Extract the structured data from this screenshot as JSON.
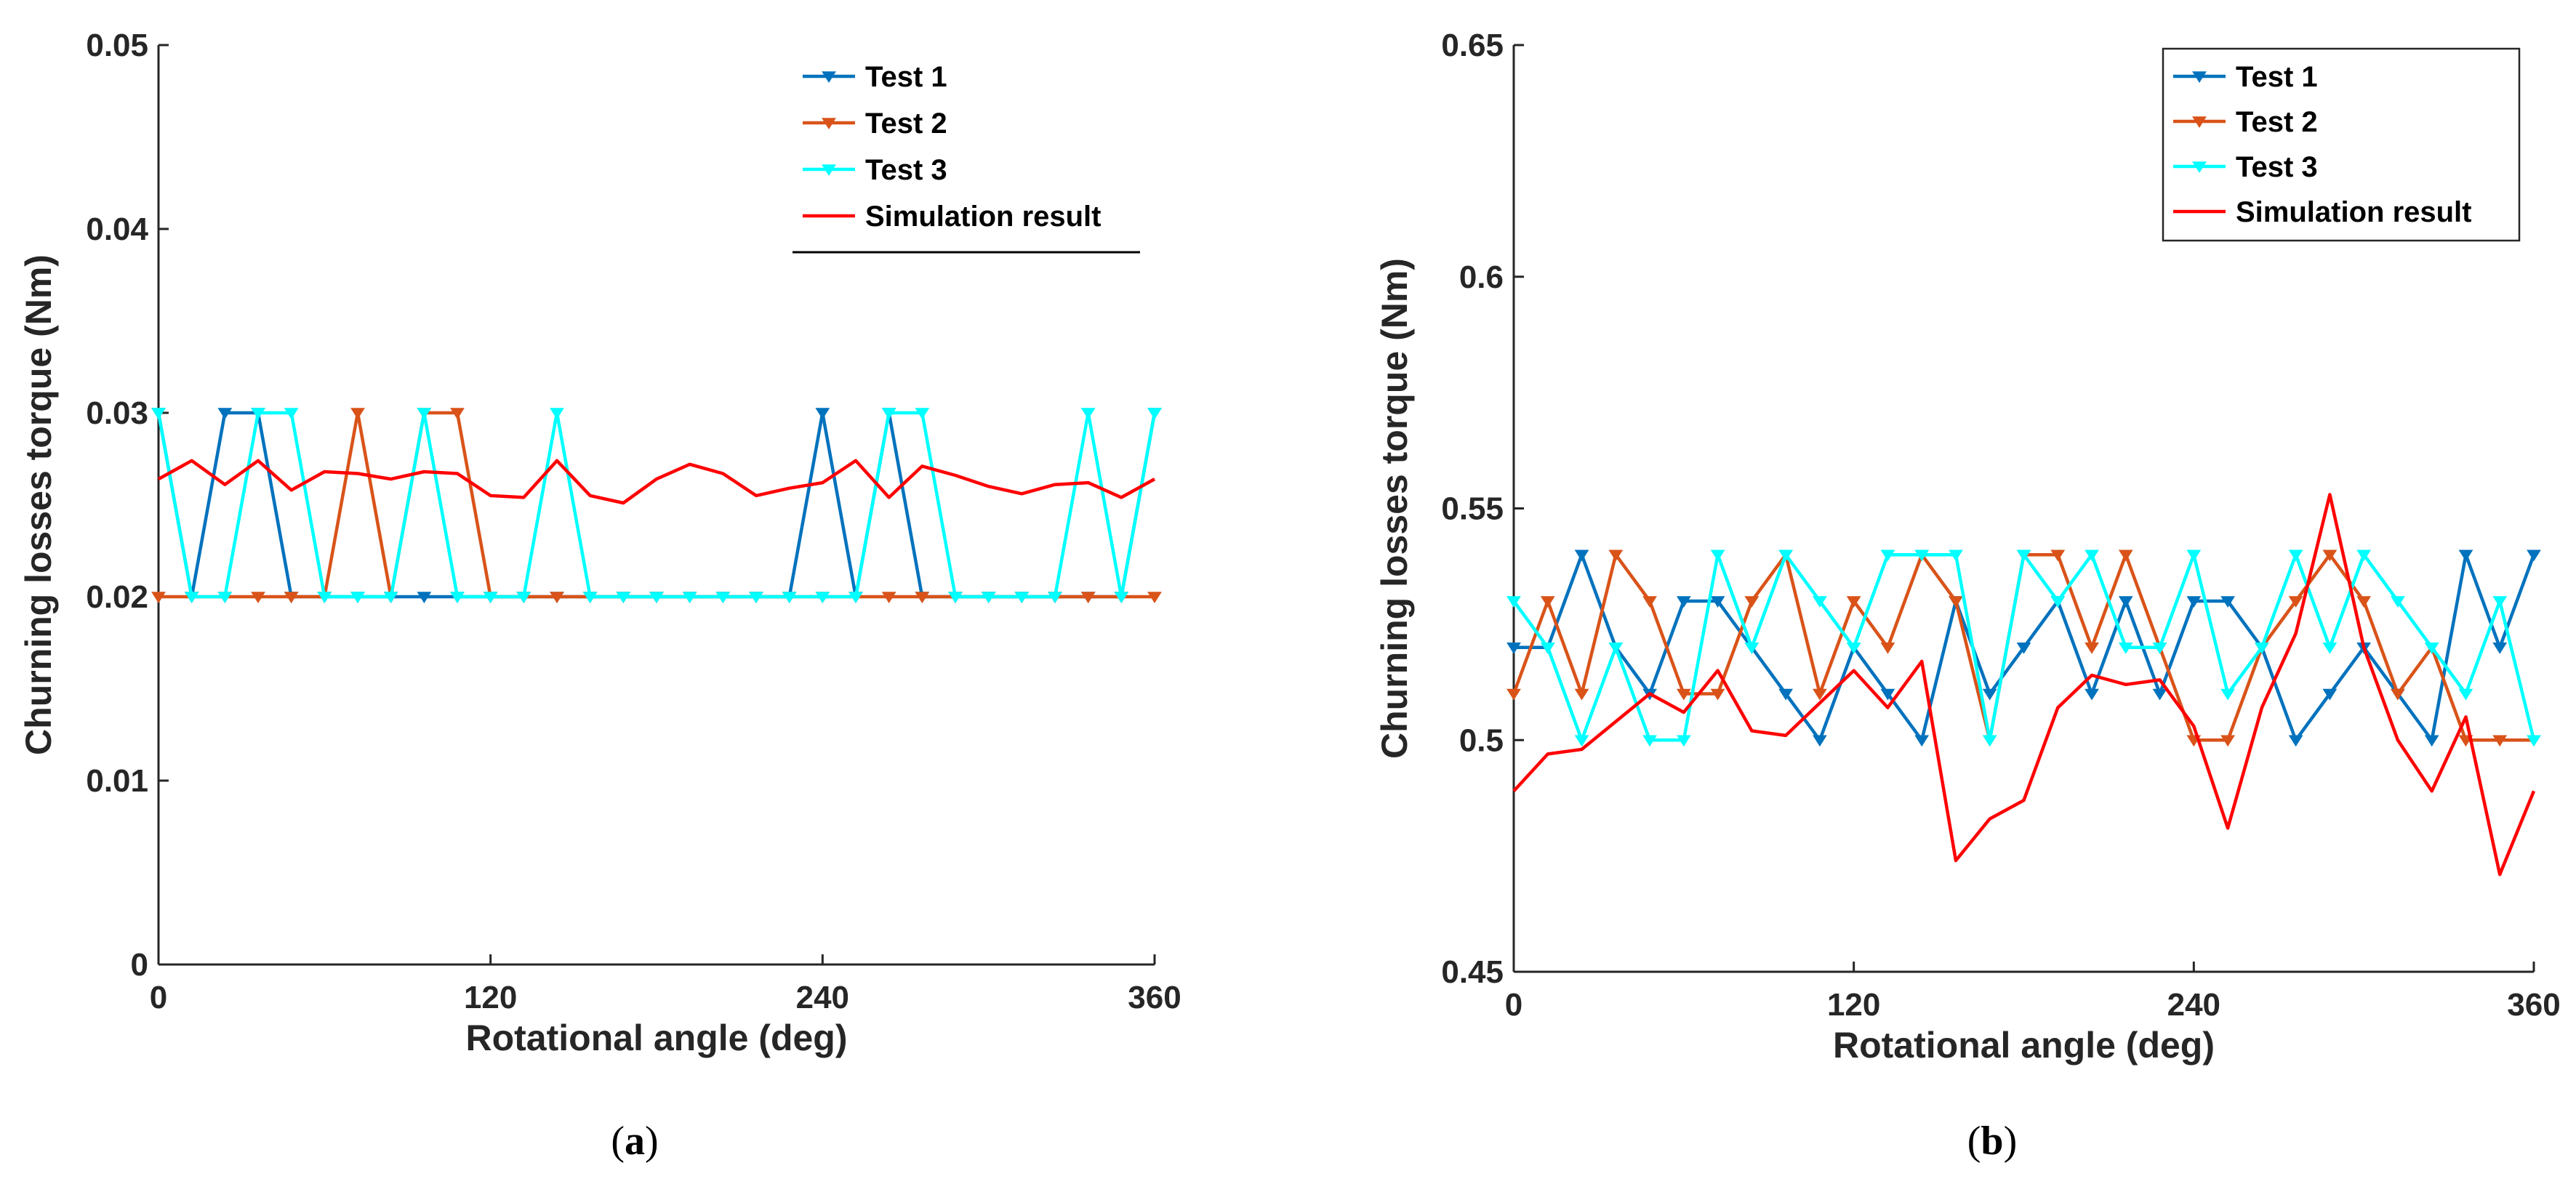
{
  "colors": {
    "test1": "#0072BD",
    "test2": "#D95319",
    "test3": "#00FFFF",
    "simulation": "#FF0000",
    "axis": "#262626"
  },
  "chart_data": [
    {
      "type": "line",
      "caption_open": "(",
      "caption_letter": "a",
      "caption_close": ")",
      "xlabel": "Rotational angle (deg)",
      "ylabel": "Churning losses torque (Nm)",
      "xlim": [
        0,
        360
      ],
      "ylim": [
        0,
        0.05
      ],
      "xticks": [
        0,
        120,
        240,
        360
      ],
      "yticks": [
        0,
        0.01,
        0.02,
        0.03,
        0.04,
        0.05
      ],
      "ytick_labels": [
        "0",
        "0.01",
        "0.02",
        "0.03",
        "0.04",
        "0.05"
      ],
      "xtick_labels": [
        "0",
        "120",
        "240",
        "360"
      ],
      "legend": "top-right",
      "grid": false,
      "series": [
        {
          "name": "Test 1",
          "color": "#0072BD",
          "marker": "triangle-down",
          "x": [
            0,
            12,
            24,
            36,
            48,
            60,
            72,
            84,
            96,
            108,
            120,
            132,
            144,
            156,
            168,
            180,
            192,
            204,
            216,
            228,
            240,
            252,
            264,
            276,
            288,
            300,
            312,
            324,
            336,
            348,
            360
          ],
          "y": [
            0.03,
            0.02,
            0.03,
            0.03,
            0.02,
            0.02,
            0.02,
            0.02,
            0.02,
            0.02,
            0.02,
            0.02,
            0.02,
            0.02,
            0.02,
            0.02,
            0.02,
            0.02,
            0.02,
            0.02,
            0.03,
            0.02,
            0.03,
            0.02,
            0.02,
            0.02,
            0.02,
            0.02,
            0.02,
            0.02,
            0.03
          ]
        },
        {
          "name": "Test 2",
          "color": "#D95319",
          "marker": "triangle-down",
          "x": [
            0,
            12,
            24,
            36,
            48,
            60,
            72,
            84,
            96,
            108,
            120,
            132,
            144,
            156,
            168,
            180,
            192,
            204,
            216,
            228,
            240,
            252,
            264,
            276,
            288,
            300,
            312,
            324,
            336,
            348,
            360
          ],
          "y": [
            0.02,
            0.02,
            0.02,
            0.02,
            0.02,
            0.02,
            0.03,
            0.02,
            0.03,
            0.03,
            0.02,
            0.02,
            0.02,
            0.02,
            0.02,
            0.02,
            0.02,
            0.02,
            0.02,
            0.02,
            0.02,
            0.02,
            0.02,
            0.02,
            0.02,
            0.02,
            0.02,
            0.02,
            0.02,
            0.02,
            0.02
          ]
        },
        {
          "name": "Test 3",
          "color": "#00FFFF",
          "marker": "triangle-down",
          "x": [
            0,
            12,
            24,
            36,
            48,
            60,
            72,
            84,
            96,
            108,
            120,
            132,
            144,
            156,
            168,
            180,
            192,
            204,
            216,
            228,
            240,
            252,
            264,
            276,
            288,
            300,
            312,
            324,
            336,
            348,
            360
          ],
          "y": [
            0.03,
            0.02,
            0.02,
            0.03,
            0.03,
            0.02,
            0.02,
            0.02,
            0.03,
            0.02,
            0.02,
            0.02,
            0.03,
            0.02,
            0.02,
            0.02,
            0.02,
            0.02,
            0.02,
            0.02,
            0.02,
            0.02,
            0.03,
            0.03,
            0.02,
            0.02,
            0.02,
            0.02,
            0.03,
            0.02,
            0.03
          ]
        },
        {
          "name": "Simulation result",
          "color": "#FF0000",
          "marker": "none",
          "x": [
            0,
            12,
            24,
            36,
            48,
            60,
            72,
            84,
            96,
            108,
            120,
            132,
            144,
            156,
            168,
            180,
            192,
            204,
            216,
            228,
            240,
            252,
            264,
            276,
            288,
            300,
            312,
            324,
            336,
            348,
            360
          ],
          "y": [
            0.0264,
            0.0274,
            0.0261,
            0.0274,
            0.0258,
            0.0268,
            0.0267,
            0.0264,
            0.0268,
            0.0267,
            0.0255,
            0.0254,
            0.0274,
            0.0255,
            0.0251,
            0.0264,
            0.0272,
            0.0267,
            0.0255,
            0.0259,
            0.0262,
            0.0274,
            0.0254,
            0.0271,
            0.0266,
            0.026,
            0.0256,
            0.0261,
            0.0262,
            0.0254,
            0.0264
          ]
        }
      ]
    },
    {
      "type": "line",
      "caption_open": "(",
      "caption_letter": "b",
      "caption_close": ")",
      "xlabel": "Rotational angle (deg)",
      "ylabel": "Churning losses torque (Nm)",
      "xlim": [
        0,
        360
      ],
      "ylim": [
        0.45,
        0.65
      ],
      "xticks": [
        0,
        120,
        240,
        360
      ],
      "yticks": [
        0.45,
        0.5,
        0.55,
        0.6,
        0.65
      ],
      "ytick_labels": [
        "0.45",
        "0.5",
        "0.55",
        "0.6",
        "0.65"
      ],
      "xtick_labels": [
        "0",
        "120",
        "240",
        "360"
      ],
      "legend": "top-right",
      "grid": false,
      "series": [
        {
          "name": "Test 1",
          "color": "#0072BD",
          "marker": "triangle-down",
          "x": [
            0,
            12,
            24,
            36,
            48,
            60,
            72,
            84,
            96,
            108,
            120,
            132,
            144,
            156,
            168,
            180,
            192,
            204,
            216,
            228,
            240,
            252,
            264,
            276,
            288,
            300,
            312,
            324,
            336,
            348,
            360
          ],
          "y": [
            0.52,
            0.52,
            0.54,
            0.52,
            0.51,
            0.53,
            0.53,
            0.52,
            0.51,
            0.5,
            0.52,
            0.51,
            0.5,
            0.53,
            0.51,
            0.52,
            0.53,
            0.51,
            0.53,
            0.51,
            0.53,
            0.53,
            0.52,
            0.5,
            0.51,
            0.52,
            0.51,
            0.5,
            0.54,
            0.52,
            0.54
          ]
        },
        {
          "name": "Test 2",
          "color": "#D95319",
          "marker": "triangle-down",
          "x": [
            0,
            12,
            24,
            36,
            48,
            60,
            72,
            84,
            96,
            108,
            120,
            132,
            144,
            156,
            168,
            180,
            192,
            204,
            216,
            228,
            240,
            252,
            264,
            276,
            288,
            300,
            312,
            324,
            336,
            348,
            360
          ],
          "y": [
            0.51,
            0.53,
            0.51,
            0.54,
            0.53,
            0.51,
            0.51,
            0.53,
            0.54,
            0.51,
            0.53,
            0.52,
            0.54,
            0.53,
            0.5,
            0.54,
            0.54,
            0.52,
            0.54,
            0.52,
            0.5,
            0.5,
            0.52,
            0.53,
            0.54,
            0.53,
            0.51,
            0.52,
            0.5,
            0.5,
            0.5
          ]
        },
        {
          "name": "Test 3",
          "color": "#00FFFF",
          "marker": "triangle-down",
          "x": [
            0,
            12,
            24,
            36,
            48,
            60,
            72,
            84,
            96,
            108,
            120,
            132,
            144,
            156,
            168,
            180,
            192,
            204,
            216,
            228,
            240,
            252,
            264,
            276,
            288,
            300,
            312,
            324,
            336,
            348,
            360
          ],
          "y": [
            0.53,
            0.52,
            0.5,
            0.52,
            0.5,
            0.5,
            0.54,
            0.52,
            0.54,
            0.53,
            0.52,
            0.54,
            0.54,
            0.54,
            0.5,
            0.54,
            0.53,
            0.54,
            0.52,
            0.52,
            0.54,
            0.51,
            0.52,
            0.54,
            0.52,
            0.54,
            0.53,
            0.52,
            0.51,
            0.53,
            0.5
          ]
        },
        {
          "name": "Simulation result",
          "color": "#FF0000",
          "marker": "none",
          "x": [
            0,
            12,
            24,
            36,
            48,
            60,
            72,
            84,
            96,
            108,
            120,
            132,
            144,
            156,
            168,
            180,
            192,
            204,
            216,
            228,
            240,
            252,
            264,
            276,
            288,
            300,
            312,
            324,
            336,
            348,
            360
          ],
          "y": [
            0.489,
            0.497,
            0.498,
            0.504,
            0.51,
            0.506,
            0.515,
            0.502,
            0.501,
            0.508,
            0.515,
            0.507,
            0.517,
            0.474,
            0.483,
            0.487,
            0.507,
            0.514,
            0.512,
            0.513,
            0.503,
            0.481,
            0.507,
            0.523,
            0.553,
            0.52,
            0.5,
            0.489,
            0.505,
            0.471,
            0.489
          ]
        }
      ]
    }
  ]
}
